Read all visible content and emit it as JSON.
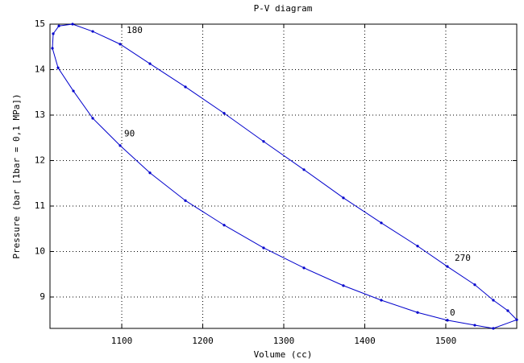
{
  "chart_data": {
    "type": "line",
    "title": "P-V diagram",
    "x_label": "Volume (cc)",
    "y_label": "Pressure (bar [1bar = 0,1 MPa])",
    "x": [
      1502,
      1465.2,
      1420.4,
      1373.6,
      1324.9,
      1275.1,
      1226.4,
      1178.6,
      1134.8,
      1098,
      1064.2,
      1040.3,
      1021.4,
      1014.4,
      1015.4,
      1022.4,
      1039.3,
      1064.2,
      1098,
      1134.8,
      1178.6,
      1226.4,
      1275.1,
      1324.9,
      1373.6,
      1420.4,
      1465.2,
      1502,
      1535.8,
      1558.7,
      1576.6,
      1587.6,
      1558.7,
      1535.8,
      1502
    ],
    "series": [
      {
        "color": "#0000cc",
        "values": [
          8.49,
          8.66,
          8.93,
          9.25,
          9.64,
          10.08,
          10.58,
          11.12,
          11.73,
          12.33,
          12.93,
          13.53,
          14.04,
          14.47,
          14.79,
          14.96,
          15.0,
          14.84,
          14.56,
          14.13,
          13.62,
          13.04,
          12.42,
          11.8,
          11.18,
          10.63,
          10.12,
          9.67,
          9.27,
          8.93,
          8.7,
          8.5,
          8.31,
          8.38,
          8.49
        ]
      }
    ],
    "annotations": [
      {
        "text": "0",
        "x": 1505,
        "y": 8.65
      },
      {
        "text": "90",
        "x": 1103,
        "y": 12.58
      },
      {
        "text": "180",
        "x": 1106,
        "y": 14.86
      },
      {
        "text": "270",
        "x": 1511,
        "y": 9.85
      }
    ],
    "xlim": [
      1011.4,
      1587.6
    ],
    "ylim": [
      8.31,
      15
    ],
    "xticks": [
      1100,
      1200,
      1300,
      1400,
      1500
    ],
    "yticks": [
      9,
      10,
      11,
      12,
      13,
      14,
      15
    ],
    "grid": true
  }
}
